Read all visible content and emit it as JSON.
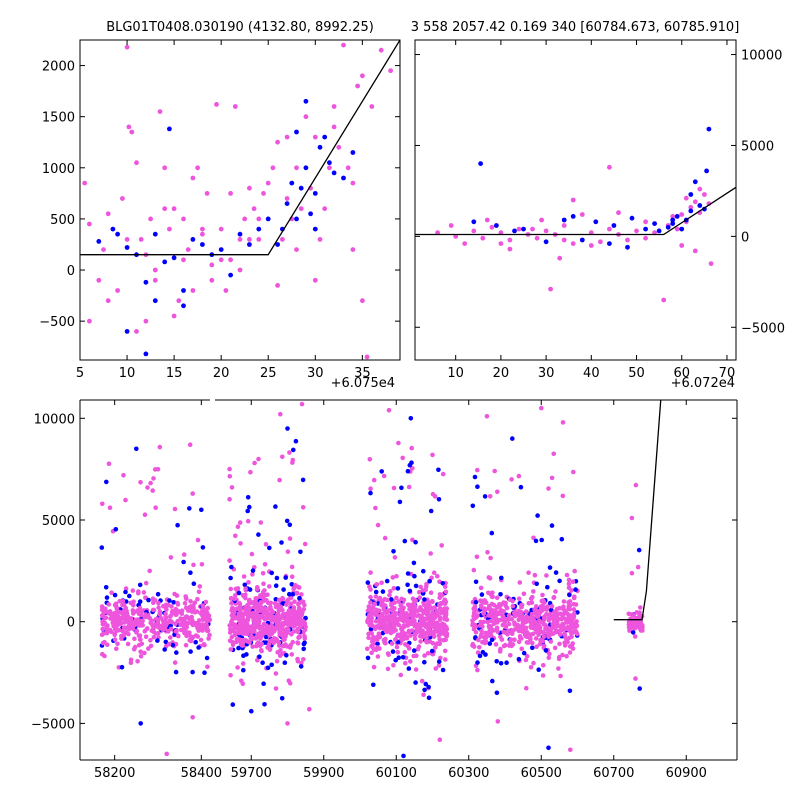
{
  "colors": {
    "primary": "#0000ff",
    "secondary": "#ee55dd",
    "model": "#000000"
  },
  "chart_data": [
    {
      "id": "zoom",
      "type": "scatter",
      "title": "BLG01T0408.030190 (4132.80, 8992.25)",
      "offset_label": "+6.075e4",
      "xlim": [
        5,
        39
      ],
      "ylim": [
        -880,
        2250
      ],
      "xticks": [
        5,
        10,
        15,
        20,
        25,
        30,
        35
      ],
      "xtick_labels": [
        "5",
        "10",
        "15",
        "20",
        "25",
        "30",
        "35"
      ],
      "yticks": [
        -500,
        0,
        500,
        1000,
        1500,
        2000
      ],
      "ytick_labels": [
        "−500",
        "0",
        "500",
        "1000",
        "1500",
        "2000"
      ],
      "yaxis_side": "left",
      "model": {
        "x": [
          5,
          25,
          39
        ],
        "y": [
          150,
          150,
          2250
        ]
      },
      "series": [
        {
          "name": "blue",
          "color": "#0000ff",
          "points": [
            [
              7,
              280
            ],
            [
              8.5,
              400
            ],
            [
              9,
              350
            ],
            [
              10,
              220
            ],
            [
              11,
              150
            ],
            [
              12,
              -120
            ],
            [
              13,
              350
            ],
            [
              14,
              80
            ],
            [
              14.5,
              1380
            ],
            [
              15,
              120
            ],
            [
              16,
              -200
            ],
            [
              17,
              300
            ],
            [
              18,
              250
            ],
            [
              19,
              150
            ],
            [
              20,
              200
            ],
            [
              21,
              -50
            ],
            [
              22,
              350
            ],
            [
              23,
              250
            ],
            [
              24,
              400
            ],
            [
              25,
              500
            ],
            [
              26,
              250
            ],
            [
              26.5,
              400
            ],
            [
              27,
              650
            ],
            [
              27.5,
              850
            ],
            [
              28,
              500
            ],
            [
              28.5,
              800
            ],
            [
              29,
              1000
            ],
            [
              29.5,
              550
            ],
            [
              30,
              750
            ],
            [
              30.5,
              1200
            ],
            [
              31,
              1300
            ],
            [
              31.5,
              1050
            ],
            [
              32,
              950
            ],
            [
              33,
              900
            ],
            [
              34,
              1150
            ],
            [
              29,
              1650
            ],
            [
              28,
              1350
            ],
            [
              30,
              400
            ],
            [
              12,
              -820
            ],
            [
              10,
              -600
            ],
            [
              13,
              -300
            ],
            [
              16,
              -350
            ]
          ]
        },
        {
          "name": "magenta",
          "color": "#ee55dd",
          "points": [
            [
              5.5,
              850
            ],
            [
              6,
              450
            ],
            [
              7,
              -100
            ],
            [
              7.5,
              200
            ],
            [
              8,
              550
            ],
            [
              9,
              -200
            ],
            [
              9.5,
              700
            ],
            [
              10,
              2180
            ],
            [
              10.2,
              1400
            ],
            [
              10.5,
              1350
            ],
            [
              11,
              1050
            ],
            [
              11.5,
              300
            ],
            [
              12,
              -500
            ],
            [
              12.5,
              500
            ],
            [
              13,
              0
            ],
            [
              13.5,
              1550
            ],
            [
              14,
              1000
            ],
            [
              14.5,
              400
            ],
            [
              15,
              600
            ],
            [
              15.5,
              -300
            ],
            [
              16,
              500
            ],
            [
              16.5,
              200
            ],
            [
              17,
              900
            ],
            [
              17.5,
              1000
            ],
            [
              18,
              350
            ],
            [
              18.5,
              750
            ],
            [
              19,
              -100
            ],
            [
              19.5,
              1620
            ],
            [
              20,
              400
            ],
            [
              20.5,
              -200
            ],
            [
              21,
              750
            ],
            [
              21.5,
              1600
            ],
            [
              22,
              300
            ],
            [
              22.5,
              500
            ],
            [
              23,
              800
            ],
            [
              23.5,
              600
            ],
            [
              24,
              500
            ],
            [
              24.5,
              750
            ],
            [
              25,
              850
            ],
            [
              25.5,
              1000
            ],
            [
              26,
              1250
            ],
            [
              26.5,
              300
            ],
            [
              27,
              700
            ],
            [
              27.5,
              500
            ],
            [
              28,
              1000
            ],
            [
              28.5,
              600
            ],
            [
              29,
              1500
            ],
            [
              29.5,
              800
            ],
            [
              30,
              1300
            ],
            [
              30.5,
              300
            ],
            [
              31,
              600
            ],
            [
              31.5,
              1000
            ],
            [
              32,
              1600
            ],
            [
              32.5,
              1200
            ],
            [
              33,
              2200
            ],
            [
              33.5,
              1000
            ],
            [
              34,
              850
            ],
            [
              34.5,
              1800
            ],
            [
              35,
              1900
            ],
            [
              35.5,
              -850
            ],
            [
              36,
              1600
            ],
            [
              37,
              2150
            ],
            [
              38,
              1950
            ],
            [
              6,
              -500
            ],
            [
              8,
              -300
            ],
            [
              11,
              -600
            ],
            [
              13,
              -100
            ],
            [
              15,
              -450
            ],
            [
              17,
              -200
            ],
            [
              19,
              50
            ],
            [
              21,
              100
            ],
            [
              23,
              300
            ],
            [
              26,
              -150
            ],
            [
              28,
              200
            ],
            [
              30,
              -100
            ],
            [
              32,
              1400
            ],
            [
              20,
              100
            ],
            [
              22,
              0
            ],
            [
              24,
              300
            ],
            [
              10,
              300
            ],
            [
              12,
              150
            ],
            [
              14,
              600
            ],
            [
              16,
              100
            ],
            [
              18,
              400
            ],
            [
              35,
              -300
            ],
            [
              34,
              200
            ],
            [
              27,
              1300
            ]
          ]
        }
      ]
    },
    {
      "id": "mid",
      "type": "scatter",
      "title": "3 558 2057.42 0.169 340 [60784.673, 60785.910]",
      "offset_label": "+6.072e4",
      "xlim": [
        1,
        72
      ],
      "ylim": [
        -6800,
        10800
      ],
      "xticks": [
        10,
        20,
        30,
        40,
        50,
        60,
        70
      ],
      "xtick_labels": [
        "10",
        "20",
        "30",
        "40",
        "50",
        "60",
        "70"
      ],
      "yticks": [
        -5000,
        0,
        5000,
        10000
      ],
      "ytick_labels": [
        "−5000",
        "0",
        "5000",
        "10000"
      ],
      "yaxis_side": "right",
      "model": {
        "x": [
          1,
          56,
          72
        ],
        "y": [
          100,
          100,
          2700
        ]
      },
      "series": [
        {
          "name": "blue",
          "color": "#0000ff",
          "points": [
            [
              15.5,
              4000
            ],
            [
              14,
              800
            ],
            [
              19,
              600
            ],
            [
              25,
              400
            ],
            [
              34,
              900
            ],
            [
              36,
              1100
            ],
            [
              41,
              800
            ],
            [
              44,
              -400
            ],
            [
              45,
              600
            ],
            [
              49,
              1000
            ],
            [
              52,
              400
            ],
            [
              55,
              300
            ],
            [
              57,
              500
            ],
            [
              58,
              900
            ],
            [
              59,
              1100
            ],
            [
              60,
              400
            ],
            [
              61,
              900
            ],
            [
              62,
              1400
            ],
            [
              63,
              3000
            ],
            [
              64,
              1700
            ],
            [
              65,
              1500
            ],
            [
              65.5,
              3600
            ],
            [
              66,
              5900
            ],
            [
              62,
              2300
            ],
            [
              58,
              700
            ],
            [
              48,
              -600
            ],
            [
              54,
              700
            ],
            [
              30,
              -300
            ],
            [
              38,
              -200
            ],
            [
              23,
              300
            ]
          ]
        },
        {
          "name": "magenta",
          "color": "#ee55dd",
          "points": [
            [
              6,
              200
            ],
            [
              10,
              0
            ],
            [
              12,
              -400
            ],
            [
              14,
              300
            ],
            [
              16,
              -100
            ],
            [
              18,
              500
            ],
            [
              20,
              200
            ],
            [
              22,
              -200
            ],
            [
              24,
              400
            ],
            [
              26,
              100
            ],
            [
              28,
              -100
            ],
            [
              30,
              300
            ],
            [
              31,
              -2900
            ],
            [
              32,
              100
            ],
            [
              34,
              600
            ],
            [
              36,
              -400
            ],
            [
              38,
              1200
            ],
            [
              40,
              200
            ],
            [
              42,
              -300
            ],
            [
              44,
              400
            ],
            [
              46,
              100
            ],
            [
              48,
              -200
            ],
            [
              50,
              300
            ],
            [
              52,
              -100
            ],
            [
              54,
              200
            ],
            [
              56,
              -3500
            ],
            [
              57,
              600
            ],
            [
              58,
              1100
            ],
            [
              59,
              400
            ],
            [
              60,
              1200
            ],
            [
              61,
              800
            ],
            [
              62,
              1600
            ],
            [
              63,
              1900
            ],
            [
              64,
              1300
            ],
            [
              65,
              2300
            ],
            [
              66,
              1800
            ],
            [
              66.5,
              -1500
            ],
            [
              63,
              -800
            ],
            [
              60,
              -500
            ],
            [
              44,
              3800
            ],
            [
              36,
              2000
            ],
            [
              29,
              900
            ],
            [
              22,
              -700
            ],
            [
              17,
              900
            ],
            [
              20,
              -400
            ],
            [
              27,
              400
            ],
            [
              34,
              -200
            ],
            [
              40,
              -500
            ],
            [
              46,
              1300
            ],
            [
              52,
              800
            ],
            [
              9,
              600
            ],
            [
              33,
              -1200
            ],
            [
              64,
              2600
            ],
            [
              61,
              2100
            ]
          ]
        }
      ]
    },
    {
      "id": "full",
      "type": "scatter",
      "title": "",
      "xlim_segments": [
        [
          58120,
          58420
        ],
        [
          59600,
          61040
        ]
      ],
      "ylim": [
        -6800,
        10900
      ],
      "xticks_segment1": [
        58200,
        58400
      ],
      "xtick_labels_segment1": [
        "58200",
        "58400"
      ],
      "xticks_segment2": [
        59700,
        59900,
        60100,
        60300,
        60500,
        60700,
        60900
      ],
      "xtick_labels_segment2": [
        "59700",
        "59900",
        "60100",
        "60300",
        "60500",
        "60700",
        "60900"
      ],
      "yticks": [
        -5000,
        0,
        5000,
        10000
      ],
      "ytick_labels": [
        "−5000",
        "0",
        "5000",
        "10000"
      ],
      "yaxis_side": "left",
      "seasons": [
        {
          "start": 58170,
          "end": 58420,
          "spread": 700,
          "n_blue": 70,
          "n_magenta": 150
        },
        {
          "start": 59640,
          "end": 59850,
          "spread": 900,
          "n_blue": 90,
          "n_magenta": 180
        },
        {
          "start": 60020,
          "end": 60240,
          "spread": 900,
          "n_blue": 90,
          "n_magenta": 180
        },
        {
          "start": 60310,
          "end": 60600,
          "spread": 850,
          "n_blue": 90,
          "n_magenta": 170
        },
        {
          "start": 60740,
          "end": 60780,
          "spread": 300,
          "n_blue": 6,
          "n_magenta": 20
        }
      ],
      "model": {
        "x": [
          60700,
          60778,
          60790,
          60830
        ],
        "y": [
          100,
          100,
          1500,
          11000
        ]
      },
      "outliers": [
        [
          58250,
          8500
        ],
        [
          58300,
          7500
        ],
        [
          58380,
          6300
        ],
        [
          58400,
          5500
        ],
        [
          59720,
          8000
        ],
        [
          59780,
          10200
        ],
        [
          59800,
          9500
        ],
        [
          59840,
          10700
        ],
        [
          60080,
          10400
        ],
        [
          60140,
          10000
        ],
        [
          60200,
          8200
        ],
        [
          60350,
          10100
        ],
        [
          60420,
          9000
        ],
        [
          60500,
          10500
        ],
        [
          60560,
          9800
        ],
        [
          58260,
          -5000
        ],
        [
          58320,
          -6500
        ],
        [
          58380,
          -4700
        ],
        [
          59700,
          -4400
        ],
        [
          59800,
          -5000
        ],
        [
          59860,
          -4300
        ],
        [
          60120,
          -6600
        ],
        [
          60220,
          -5800
        ],
        [
          60380,
          -4900
        ],
        [
          60520,
          -6200
        ],
        [
          60580,
          -6300
        ],
        [
          60760,
          -2800
        ]
      ]
    }
  ]
}
